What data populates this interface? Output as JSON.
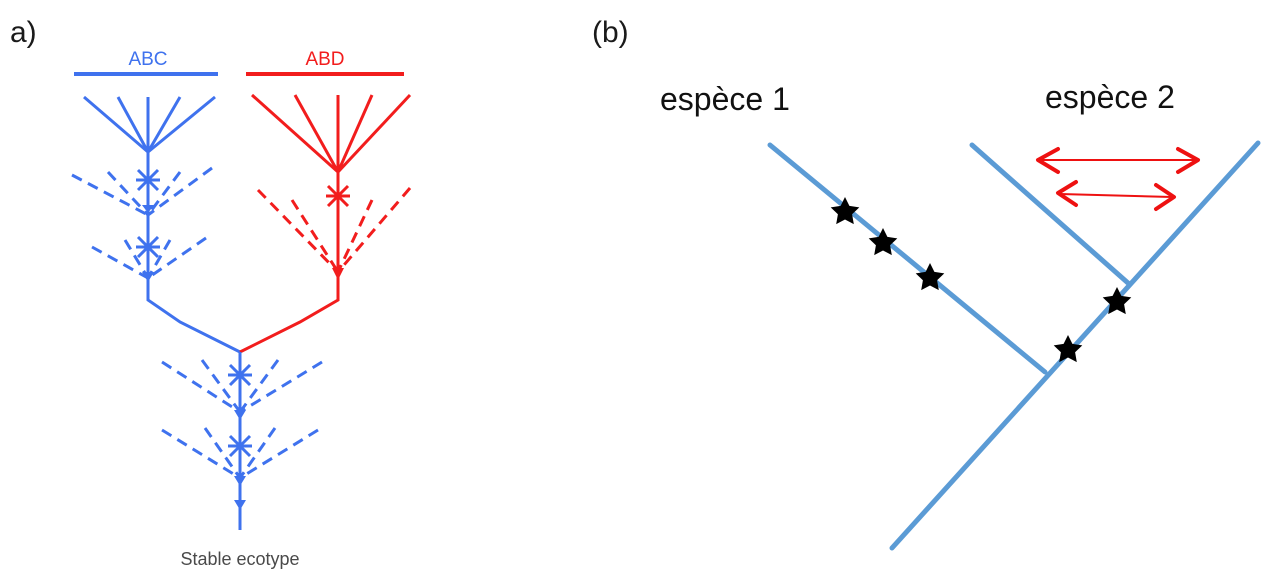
{
  "colors": {
    "blue": "#3f72ee",
    "red": "#f21d1d",
    "tree_blue": "#5b9bd5",
    "star": "#000000",
    "arrow_red": "#ee1111"
  },
  "panel_a": {
    "label": "a)",
    "populations": [
      {
        "name": "ABC",
        "color": "blue"
      },
      {
        "name": "ABD",
        "color": "red"
      }
    ],
    "caption": "Stable ecotype"
  },
  "panel_b": {
    "label": "(b)",
    "species": [
      "espèce 1",
      "espèce 2"
    ]
  }
}
